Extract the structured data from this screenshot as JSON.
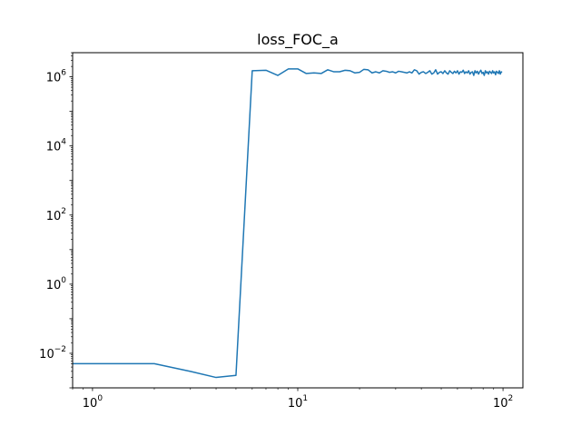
{
  "chart_data": {
    "type": "line",
    "title": "loss_FOC_a",
    "xlabel": "",
    "ylabel": "",
    "xscale": "log",
    "yscale": "log",
    "xlim": [
      0.8,
      125
    ],
    "ylim": [
      0.001,
      5000000.0
    ],
    "grid": false,
    "x_ticks": [
      {
        "value": 1,
        "base": "10",
        "exp": "0"
      },
      {
        "value": 10,
        "base": "10",
        "exp": "1"
      },
      {
        "value": 100,
        "base": "10",
        "exp": "2"
      }
    ],
    "y_ticks": [
      {
        "value": 0.01,
        "base": "10",
        "exp": "−2"
      },
      {
        "value": 1,
        "base": "10",
        "exp": "0"
      },
      {
        "value": 100,
        "base": "10",
        "exp": "2"
      },
      {
        "value": 10000,
        "base": "10",
        "exp": "4"
      },
      {
        "value": 1000000,
        "base": "10",
        "exp": "6"
      }
    ],
    "series": [
      {
        "color": "#1f77b4",
        "x": [
          0,
          1,
          2,
          3,
          4,
          5,
          6,
          7,
          8,
          9,
          10,
          11,
          12,
          13,
          14,
          15,
          16,
          17,
          18,
          19,
          20,
          21,
          22,
          23,
          24,
          25,
          26,
          27,
          28,
          29,
          30,
          31,
          32,
          33,
          34,
          35,
          36,
          37,
          38,
          39,
          40,
          41,
          42,
          43,
          44,
          45,
          46,
          47,
          48,
          49,
          50,
          51,
          52,
          53,
          54,
          55,
          56,
          57,
          58,
          59,
          60,
          61,
          62,
          63,
          64,
          65,
          66,
          67,
          68,
          69,
          70,
          71,
          72,
          73,
          74,
          75,
          76,
          77,
          78,
          79,
          80,
          81,
          82,
          83,
          84,
          85,
          86,
          87,
          88,
          89,
          90,
          91,
          92,
          93,
          94,
          95,
          96,
          97,
          98,
          99
        ],
        "y": [
          0.005,
          0.005,
          0.005,
          0.003,
          0.002,
          0.0023,
          1500000,
          1550000,
          1100000,
          1700000,
          1700000,
          1250000,
          1300000,
          1250000,
          1600000,
          1400000,
          1400000,
          1550000,
          1500000,
          1300000,
          1350000,
          1650000,
          1600000,
          1300000,
          1400000,
          1300000,
          1500000,
          1450000,
          1350000,
          1400000,
          1300000,
          1450000,
          1400000,
          1350000,
          1300000,
          1400000,
          1300000,
          1600000,
          1500000,
          1200000,
          1350000,
          1400000,
          1250000,
          1350000,
          1500000,
          1200000,
          1300000,
          1600000,
          1200000,
          1350000,
          1400000,
          1250000,
          1500000,
          1300000,
          1200000,
          1500000,
          1350000,
          1250000,
          1450000,
          1300000,
          1500000,
          1200000,
          1400000,
          1350000,
          1550000,
          1250000,
          1400000,
          1300000,
          1500000,
          1200000,
          1350000,
          1400000,
          1100000,
          1500000,
          1300000,
          1450000,
          1200000,
          1400000,
          1550000,
          1250000,
          1350000,
          1100000,
          1500000,
          1300000,
          1400000,
          1200000,
          1450000,
          1350000,
          1250000,
          1500000,
          1300000,
          1400000,
          1150000,
          1450000,
          1350000,
          1250000,
          1500000,
          1200000,
          1400000,
          1350000
        ]
      }
    ]
  }
}
